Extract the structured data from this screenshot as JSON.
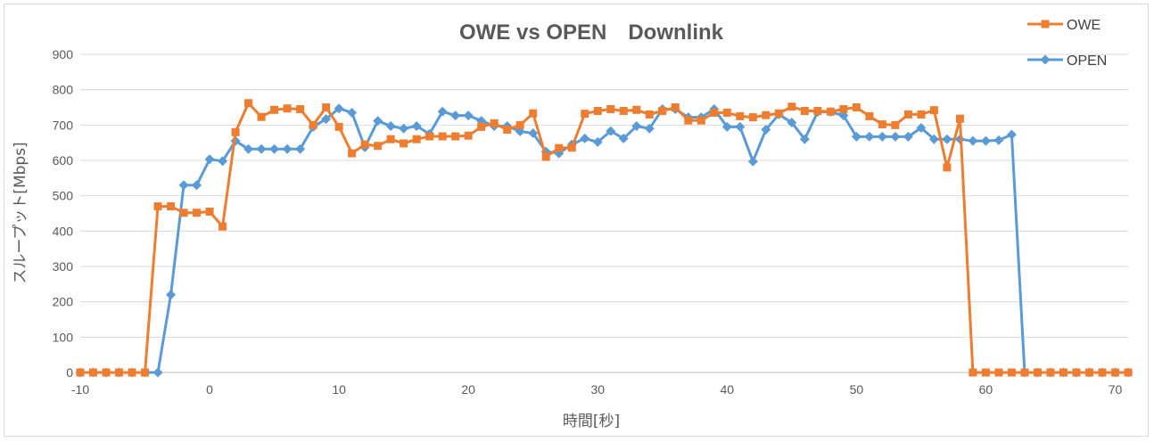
{
  "chart_data": {
    "type": "line",
    "title": "OWE vs OPEN　Downlink",
    "xlabel": "時間[秒]",
    "ylabel": "スループット[Mbps]",
    "xlim": [
      -10,
      71
    ],
    "ylim": [
      0,
      900
    ],
    "x_ticks": [
      -10,
      0,
      10,
      20,
      30,
      40,
      50,
      60,
      70
    ],
    "y_ticks": [
      0,
      100,
      200,
      300,
      400,
      500,
      600,
      700,
      800,
      900
    ],
    "grid": "horizontal",
    "legend_position": "top-right",
    "x": [
      -10,
      -9,
      -8,
      -7,
      -6,
      -5,
      -4,
      -3,
      -2,
      -1,
      0,
      1,
      2,
      3,
      4,
      5,
      6,
      7,
      8,
      9,
      10,
      11,
      12,
      13,
      14,
      15,
      16,
      17,
      18,
      19,
      20,
      21,
      22,
      23,
      24,
      25,
      26,
      27,
      28,
      29,
      30,
      31,
      32,
      33,
      34,
      35,
      36,
      37,
      38,
      39,
      40,
      41,
      42,
      43,
      44,
      45,
      46,
      47,
      48,
      49,
      50,
      51,
      52,
      53,
      54,
      55,
      56,
      57,
      58,
      59,
      60,
      61,
      62,
      63,
      64,
      65,
      66,
      67,
      68,
      69,
      70,
      71
    ],
    "series": [
      {
        "name": "OWE",
        "color": "#ed7d31",
        "marker": "square",
        "values": [
          0,
          0,
          0,
          0,
          0,
          0,
          470,
          470,
          452,
          452,
          455,
          413,
          680,
          762,
          723,
          743,
          747,
          745,
          700,
          750,
          695,
          620,
          645,
          641,
          660,
          648,
          660,
          668,
          668,
          668,
          670,
          695,
          705,
          687,
          700,
          733,
          610,
          635,
          636,
          732,
          740,
          745,
          740,
          743,
          730,
          740,
          750,
          713,
          713,
          735,
          735,
          725,
          722,
          728,
          733,
          752,
          740,
          740,
          738,
          745,
          750,
          725,
          702,
          700,
          730,
          730,
          742,
          580,
          718,
          0,
          0,
          0,
          0,
          0,
          0,
          0,
          0,
          0,
          0,
          0,
          0,
          0
        ]
      },
      {
        "name": "OPEN",
        "color": "#5b9bd5",
        "marker": "diamond",
        "values": [
          0,
          0,
          0,
          0,
          0,
          0,
          0,
          220,
          530,
          530,
          603,
          598,
          655,
          632,
          632,
          632,
          632,
          632,
          695,
          717,
          747,
          735,
          637,
          712,
          697,
          690,
          697,
          675,
          738,
          727,
          727,
          712,
          697,
          697,
          682,
          677,
          625,
          620,
          645,
          662,
          652,
          683,
          662,
          697,
          690,
          745,
          745,
          722,
          722,
          745,
          695,
          695,
          597,
          687,
          730,
          707,
          660,
          737,
          737,
          727,
          667,
          667,
          667,
          667,
          667,
          692,
          660,
          660,
          660,
          655,
          655,
          657,
          673,
          0,
          0,
          0,
          0,
          0,
          0,
          0,
          0,
          0
        ]
      }
    ]
  }
}
